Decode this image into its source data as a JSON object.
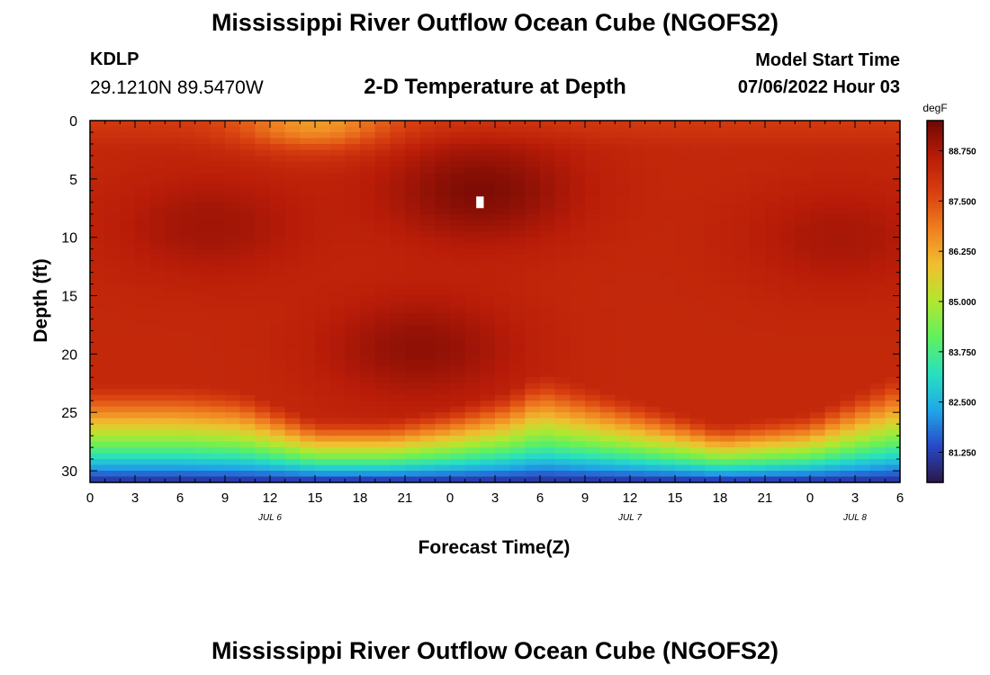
{
  "header": {
    "title": "Mississippi River Outflow Ocean Cube (NGOFS2)",
    "station": "KDLP",
    "coords": "29.1210N  89.5470W",
    "subtitle": "2-D Temperature at Depth",
    "model_start_label": "Model Start Time",
    "model_start_value": "07/06/2022 Hour 03"
  },
  "footer": {
    "title": "Mississippi River Outflow Ocean Cube (NGOFS2)"
  },
  "chart_data": {
    "type": "heatmap",
    "xlabel": "Forecast Time(Z)",
    "ylabel": "Depth (ft)",
    "x_tick_labels": [
      "0",
      "3",
      "6",
      "9",
      "12",
      "15",
      "18",
      "21",
      "0",
      "3",
      "6",
      "9",
      "12",
      "15",
      "18",
      "21",
      "0",
      "3",
      "6"
    ],
    "date_labels": [
      {
        "label": "JUL 6",
        "forecast_hour": 12
      },
      {
        "label": "JUL 7",
        "forecast_hour": 36
      },
      {
        "label": "JUL 8",
        "forecast_hour": 51
      }
    ],
    "xlim": [
      0,
      54
    ],
    "ylim": [
      31,
      0
    ],
    "y_ticks": [
      0,
      5,
      10,
      15,
      20,
      25,
      30
    ],
    "colorbar": {
      "unit": "degF",
      "min": 80.5,
      "max": 89.5,
      "tick_labels": [
        "81.250",
        "82.500",
        "83.750",
        "85.000",
        "86.250",
        "87.500",
        "88.750"
      ],
      "tick_values": [
        81.25,
        82.5,
        83.75,
        85.0,
        86.25,
        87.5,
        88.75
      ],
      "palette": [
        "#2a1848",
        "#2848c8",
        "#20a8e8",
        "#28e0c0",
        "#60f060",
        "#b0e830",
        "#f0c030",
        "#f08020",
        "#d84010",
        "#b81c08",
        "#6e0804"
      ]
    },
    "features": [
      {
        "type": "surface_warm_patch",
        "forecast_hour": 15,
        "depth_ft": 0.5,
        "temp_degF": 86.8
      },
      {
        "type": "warm_core",
        "forecast_hour": 8,
        "depth_ft": 9,
        "temp_degF": 88.9
      },
      {
        "type": "warm_core",
        "forecast_hour": 26,
        "depth_ft": 6,
        "temp_degF": 89.3
      },
      {
        "type": "warm_core",
        "forecast_hour": 22,
        "depth_ft": 19.5,
        "temp_degF": 89.1
      },
      {
        "type": "warm_core",
        "forecast_hour": 50,
        "depth_ft": 10,
        "temp_degF": 88.8
      },
      {
        "type": "thermocline_depth",
        "forecast_hours": [
          0,
          6,
          10,
          15,
          20,
          24,
          28,
          30,
          34,
          38,
          42,
          48,
          54
        ],
        "depth_ft": [
          26.5,
          26.5,
          27,
          29.5,
          29.5,
          28.5,
          27,
          25.5,
          27,
          28.5,
          30,
          29,
          25.5
        ]
      },
      {
        "type": "missing_cell",
        "forecast_hour": 26,
        "depth_ft": 7
      }
    ]
  }
}
